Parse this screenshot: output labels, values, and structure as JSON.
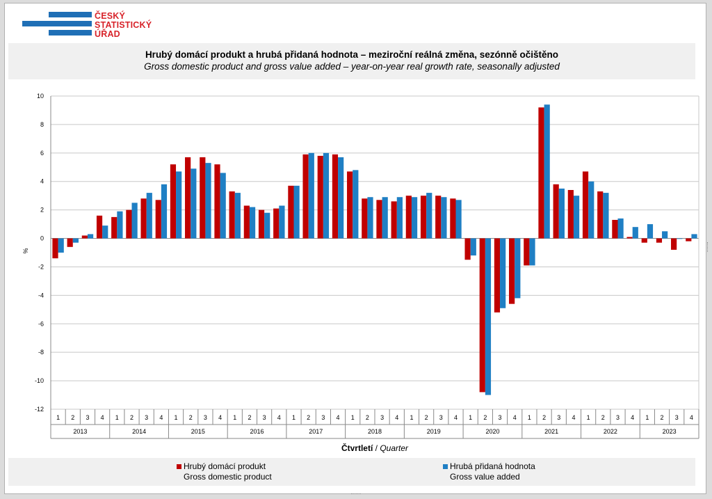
{
  "logo": {
    "lines": [
      "ČESKÝ",
      "STATISTICKÝ",
      "ÚŘAD"
    ],
    "colors": {
      "bars": "#1f6fb6",
      "text": "#d8232a"
    }
  },
  "title": {
    "cz": "Hrubý domácí produkt a hrubá přidaná hodnota – meziroční reálná změna, sezónně očištěno",
    "en": "Gross domestic product and gross value added – year-on-year real growth rate, seasonally adjusted"
  },
  "axis": {
    "y_unit": "%",
    "x_label_cz": "Čtvrtletí",
    "x_label_sep": " / ",
    "x_label_en": "Quarter"
  },
  "legend": {
    "gdp_cz": "Hrubý domácí produkt",
    "gdp_en": "Gross domestic product",
    "gva_cz": "Hrubá přidaná hodnota",
    "gva_en": "Gross value added"
  },
  "chart_data": {
    "type": "bar",
    "ylim": [
      -12,
      10
    ],
    "yticks": [
      10,
      8,
      6,
      4,
      2,
      0,
      -2,
      -4,
      -6,
      -8,
      -10,
      -12
    ],
    "grid": true,
    "legend_position": "bottom",
    "years": [
      "2013",
      "2014",
      "2015",
      "2016",
      "2017",
      "2018",
      "2019",
      "2020",
      "2021",
      "2022",
      "2023"
    ],
    "quarters": [
      "1",
      "2",
      "3",
      "4"
    ],
    "series": [
      {
        "name": "Hrubý domácí produkt",
        "color": "#c00000",
        "values": [
          -1.4,
          -0.6,
          0.2,
          1.6,
          1.5,
          2.0,
          2.8,
          2.7,
          5.2,
          5.7,
          5.7,
          5.2,
          3.3,
          2.3,
          2.0,
          2.1,
          3.7,
          5.9,
          5.8,
          5.9,
          4.7,
          2.8,
          2.7,
          2.6,
          3.0,
          3.0,
          3.0,
          2.8,
          -1.5,
          -10.8,
          -5.2,
          -4.6,
          -1.9,
          9.2,
          3.8,
          3.4,
          4.7,
          3.3,
          1.3,
          0.1,
          -0.3,
          -0.3,
          -0.8,
          -0.2
        ]
      },
      {
        "name": "Hrubá přidaná hodnota",
        "color": "#1f7fc4",
        "values": [
          -1.0,
          -0.3,
          0.3,
          0.9,
          1.9,
          2.5,
          3.2,
          3.8,
          4.7,
          4.9,
          5.3,
          4.6,
          3.2,
          2.2,
          1.8,
          2.3,
          3.7,
          6.0,
          6.0,
          5.7,
          4.8,
          2.9,
          2.9,
          2.9,
          2.9,
          3.2,
          2.9,
          2.7,
          -1.2,
          -11.0,
          -4.9,
          -4.2,
          -1.9,
          9.4,
          3.5,
          3.0,
          4.0,
          3.2,
          1.4,
          0.8,
          1.0,
          0.5,
          0.0,
          0.3
        ]
      }
    ]
  }
}
